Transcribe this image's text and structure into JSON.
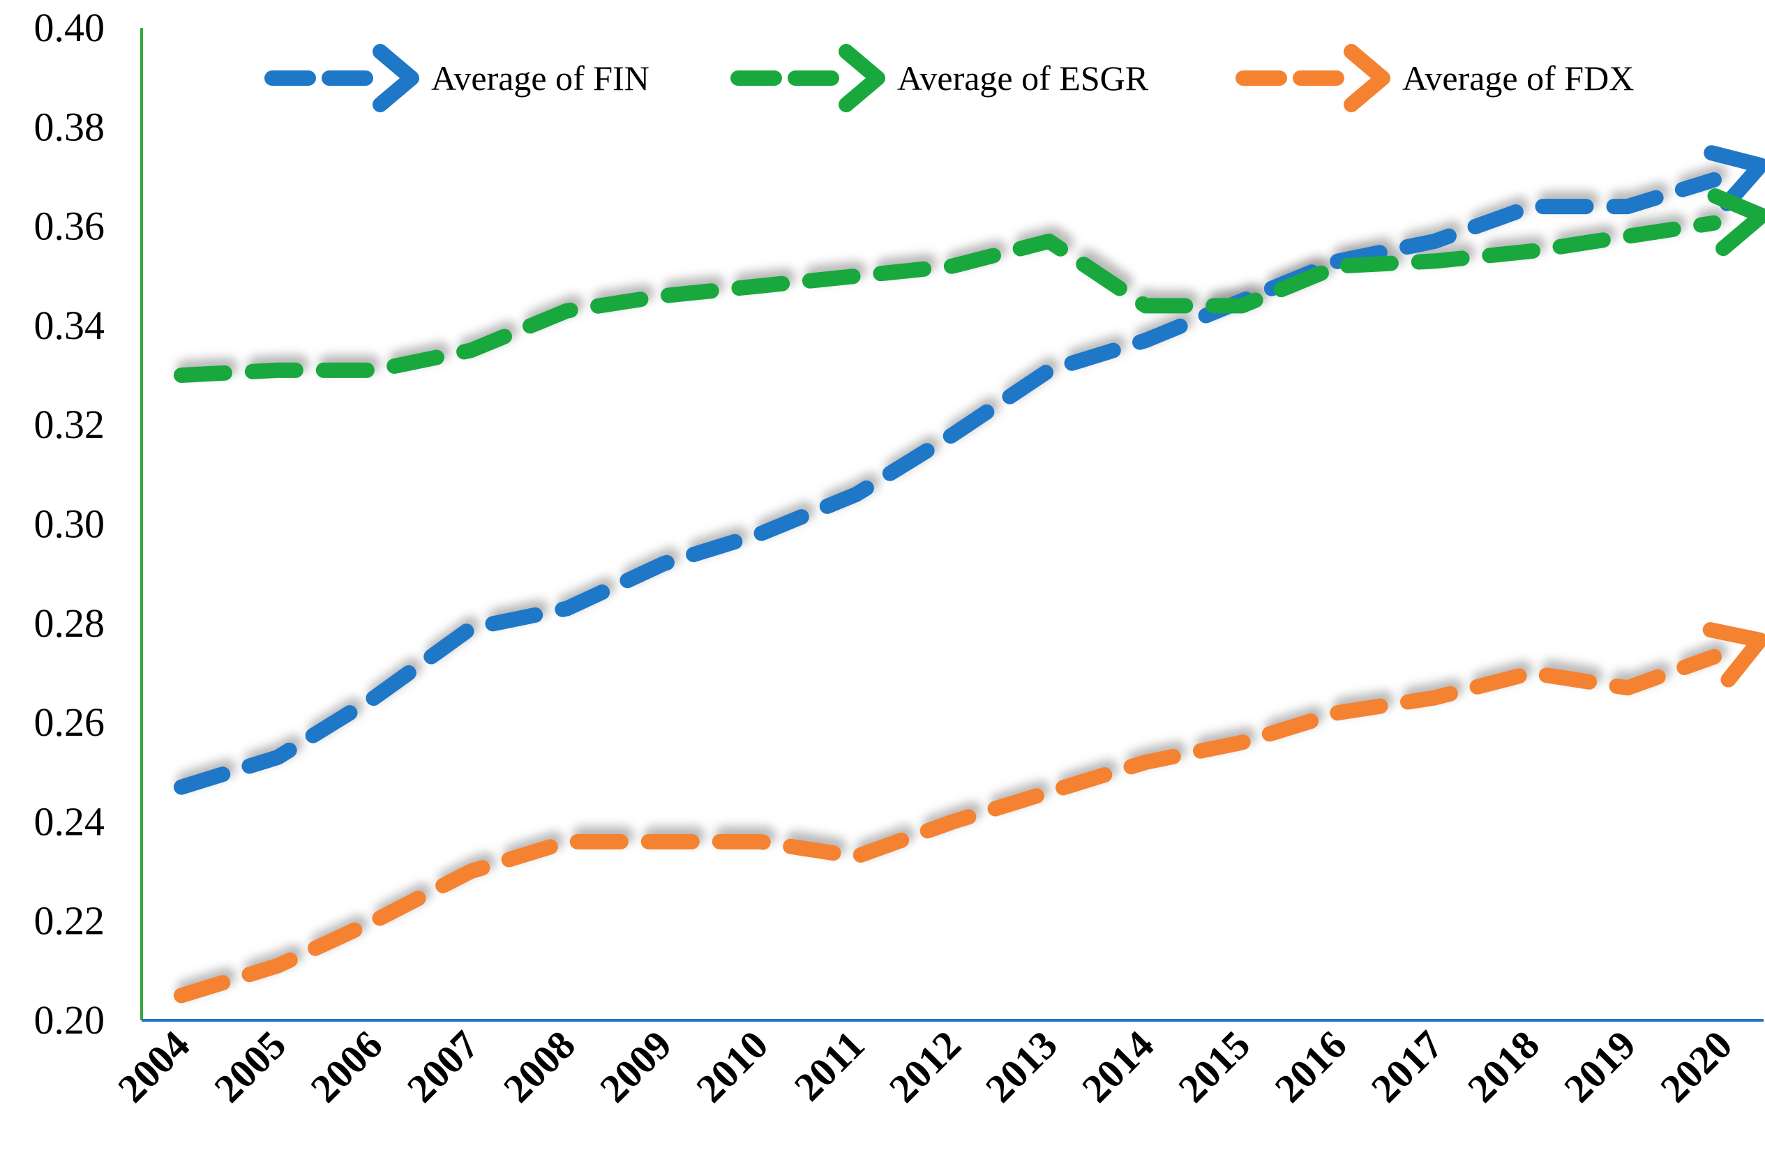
{
  "chart_data": {
    "type": "line",
    "title": "",
    "xlabel": "",
    "ylabel": "",
    "categories": [
      "2004",
      "2005",
      "2006",
      "2007",
      "2008",
      "2009",
      "2010",
      "2011",
      "2012",
      "2013",
      "2014",
      "2015",
      "2016",
      "2017",
      "2018",
      "2019",
      "2020"
    ],
    "ylim": [
      0.2,
      0.4
    ],
    "y_ticks": [
      "0.20",
      "0.22",
      "0.24",
      "0.26",
      "0.28",
      "0.30",
      "0.32",
      "0.34",
      "0.36",
      "0.38",
      "0.40"
    ],
    "y_tick_values": [
      0.2,
      0.22,
      0.24,
      0.26,
      0.28,
      0.3,
      0.32,
      0.34,
      0.36,
      0.38,
      0.4
    ],
    "grid": false,
    "legend_position": "top",
    "line_style": "dashed-arrow-with-shadow",
    "series": [
      {
        "name": "Average of FIN",
        "color": "#1f77c8",
        "values": [
          0.247,
          0.253,
          0.265,
          0.279,
          0.283,
          0.292,
          0.298,
          0.306,
          0.318,
          0.331,
          0.337,
          0.345,
          0.353,
          0.357,
          0.364,
          0.364,
          0.37
        ]
      },
      {
        "name": "Average of ESGR",
        "color": "#18a83e",
        "values": [
          0.33,
          0.331,
          0.331,
          0.335,
          0.343,
          0.346,
          0.348,
          0.35,
          0.352,
          0.357,
          0.344,
          0.344,
          0.352,
          0.353,
          0.355,
          0.358,
          0.361
        ]
      },
      {
        "name": "Average of FDX",
        "color": "#f58231",
        "values": [
          0.205,
          0.211,
          0.22,
          0.23,
          0.236,
          0.236,
          0.236,
          0.233,
          0.24,
          0.246,
          0.252,
          0.256,
          0.262,
          0.265,
          0.27,
          0.267,
          0.274
        ]
      }
    ]
  }
}
